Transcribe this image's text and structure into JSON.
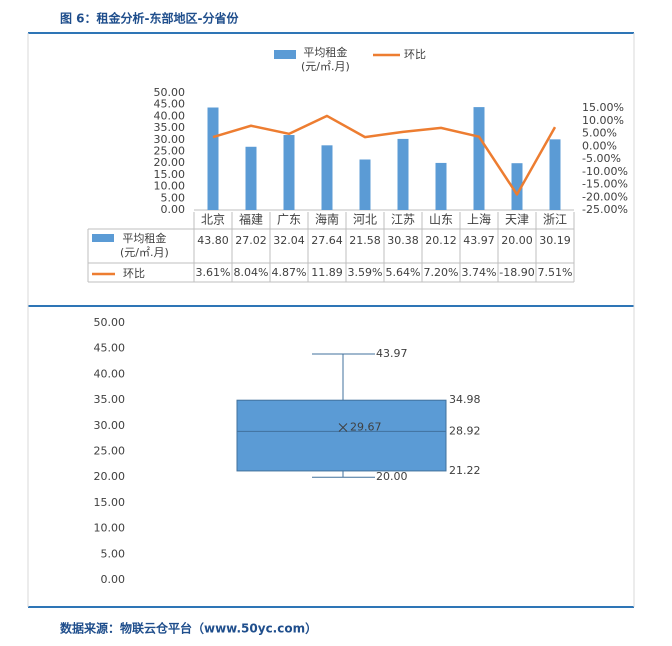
{
  "title": "图 6：租金分析-东部地区-分省份",
  "chart_data": [
    {
      "type": "combo",
      "categories": [
        "北京",
        "福建",
        "广东",
        "海南",
        "河北",
        "江苏",
        "山东",
        "上海",
        "天津",
        "浙江"
      ],
      "series": [
        {
          "name": "平均租金\n(元/㎡.月)",
          "type": "bar",
          "color": "#5b9bd5",
          "values": [
            43.8,
            27.02,
            32.04,
            27.64,
            21.58,
            30.38,
            20.12,
            43.97,
            20.0,
            30.19
          ],
          "value_labels": [
            "43.80",
            "27.02",
            "32.04",
            "27.64",
            "21.58",
            "30.38",
            "20.12",
            "43.97",
            "20.00",
            "30.19"
          ]
        },
        {
          "name": "环比",
          "type": "line",
          "color": "#ed7d31",
          "axis": "y2",
          "values": [
            3.61,
            8.04,
            4.87,
            11.89,
            3.59,
            5.64,
            7.2,
            3.74,
            -18.9,
            7.51
          ],
          "value_labels": [
            "3.61%",
            "8.04%",
            "4.87%",
            "11.89",
            "3.59%",
            "5.64%",
            "7.20%",
            "3.74%",
            "-18.90",
            "7.51%"
          ]
        }
      ],
      "ylim": [
        0,
        50
      ],
      "yticks": [
        {
          "value": 0,
          "label": "0.00"
        },
        {
          "value": 5,
          "label": "5.00"
        },
        {
          "value": 10,
          "label": "10.00"
        },
        {
          "value": 15,
          "label": "15.00"
        },
        {
          "value": 20,
          "label": "20.00"
        },
        {
          "value": 25,
          "label": "25.00"
        },
        {
          "value": 30,
          "label": "30.00"
        },
        {
          "value": 35,
          "label": "35.00"
        },
        {
          "value": 40,
          "label": "40.00"
        },
        {
          "value": 45,
          "label": "45.00"
        },
        {
          "value": 50,
          "label": "50.00"
        }
      ],
      "y2lim": [
        -25,
        15
      ],
      "y2ticks": [
        {
          "value": -25,
          "label": "-25.00%"
        },
        {
          "value": -20,
          "label": "-20.00%"
        },
        {
          "value": -15,
          "label": "-15.00%"
        },
        {
          "value": -10,
          "label": "-10.00%"
        },
        {
          "value": -5,
          "label": "-5.00%"
        },
        {
          "value": 0,
          "label": "0.00%"
        },
        {
          "value": 5,
          "label": "5.00%"
        },
        {
          "value": 10,
          "label": "10.00%"
        },
        {
          "value": 15,
          "label": "15.00%"
        }
      ],
      "legend": "top",
      "data_table": true
    },
    {
      "type": "box",
      "color": "#5b9bd5",
      "min": 20.0,
      "q1": 21.22,
      "median": 28.92,
      "mean": 29.67,
      "q3": 34.98,
      "max": 43.97,
      "value_labels": {
        "min": "20.00",
        "q1": "21.22",
        "median": "28.92",
        "mean": "29.67",
        "q3": "34.98",
        "max": "43.97"
      },
      "ylim": [
        0,
        50
      ],
      "yticks": [
        {
          "value": 0,
          "label": "0.00"
        },
        {
          "value": 5,
          "label": "5.00"
        },
        {
          "value": 10,
          "label": "10.00"
        },
        {
          "value": 15,
          "label": "15.00"
        },
        {
          "value": 20,
          "label": "20.00"
        },
        {
          "value": 25,
          "label": "25.00"
        },
        {
          "value": 30,
          "label": "30.00"
        },
        {
          "value": 35,
          "label": "35.00"
        },
        {
          "value": 40,
          "label": "40.00"
        },
        {
          "value": 45,
          "label": "45.00"
        },
        {
          "value": 50,
          "label": "50.00"
        }
      ]
    }
  ],
  "source": "数据来源：物联云仓平台（www.50yc.com）"
}
